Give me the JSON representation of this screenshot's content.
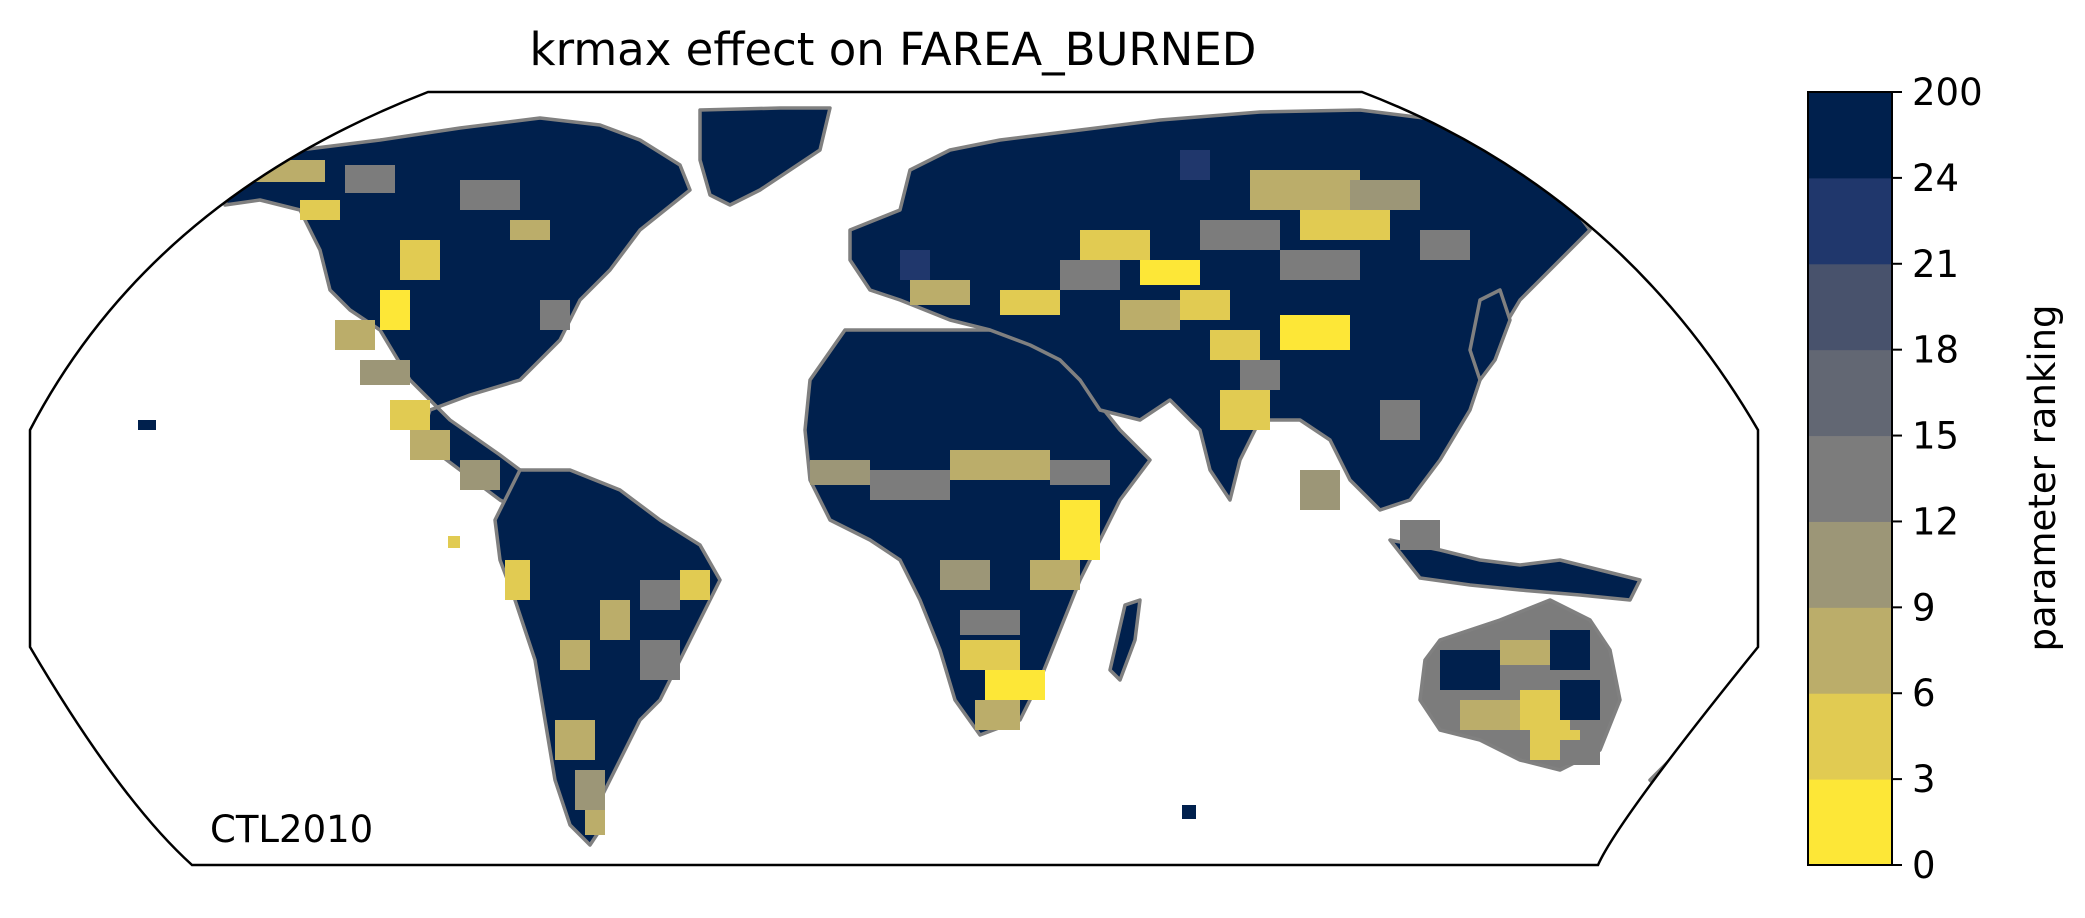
{
  "title": "krmax effect on FAREA_BURNED",
  "run_label": "CTL2010",
  "colorbar": {
    "label": "parameter ranking",
    "ticks": [
      "0",
      "3",
      "6",
      "9",
      "12",
      "15",
      "18",
      "21",
      "24",
      "200"
    ],
    "colors": [
      "#fde737",
      "#e1cb52",
      "#bbad6a",
      "#9c9677",
      "#7c7c7c",
      "#626773",
      "#48526c",
      "#20376c",
      "#00204d"
    ]
  },
  "map": {
    "projection": "Robinson",
    "coastline_color": "#808080",
    "ocean_color": "#ffffff",
    "dominant_rank_color": "#00204d"
  }
}
